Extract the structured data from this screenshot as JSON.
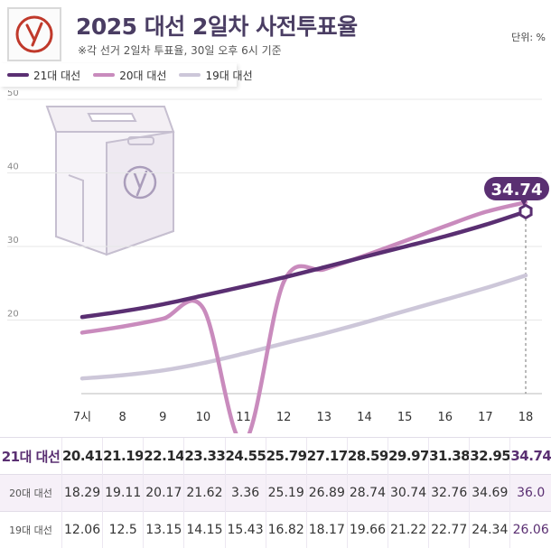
{
  "header": {
    "title": "2025 대선 2일차 사전투표율",
    "subtitle": "※각 선거 2일차 투표율, 30일 오후 6시 기준",
    "unit": "단위: %"
  },
  "colors": {
    "s21": "#5a2f72",
    "s20": "#c98bbd",
    "s19": "#cdc7d9",
    "accent": "#5a2f72",
    "grid": "#e7e7e7"
  },
  "chart_data": {
    "type": "line",
    "title": "2025 대선 2일차 사전투표율",
    "ylabel": "",
    "xlabel": "",
    "ylim": [
      10,
      50
    ],
    "yticks": [
      20,
      30,
      40,
      50
    ],
    "categories": [
      "7시",
      "8",
      "9",
      "10",
      "11",
      "12",
      "13",
      "14",
      "15",
      "16",
      "17",
      "18"
    ],
    "series": [
      {
        "name": "21대 대선",
        "values": [
          20.41,
          21.19,
          22.14,
          23.33,
          24.55,
          25.79,
          27.17,
          28.59,
          29.97,
          31.38,
          32.95,
          34.74
        ]
      },
      {
        "name": "20대 대선",
        "values": [
          18.29,
          19.11,
          20.17,
          21.62,
          3.36,
          25.19,
          26.89,
          28.74,
          30.74,
          32.76,
          34.69,
          36.0
        ]
      },
      {
        "name": "19대 대선",
        "values": [
          12.06,
          12.5,
          13.15,
          14.15,
          15.43,
          16.82,
          18.17,
          19.66,
          21.22,
          22.77,
          24.34,
          26.06
        ]
      }
    ],
    "annotation": "34.74"
  },
  "table": {
    "rows": [
      {
        "label": "21대 대선",
        "values": [
          "20.41",
          "21.19",
          "22.14",
          "23.33",
          "24.55",
          "25.79",
          "27.17",
          "28.59",
          "29.97",
          "31.38",
          "32.95",
          "34.74"
        ]
      },
      {
        "label": "20대 대선",
        "values": [
          "18.29",
          "19.11",
          "20.17",
          "21.62",
          "3.36",
          "25.19",
          "26.89",
          "28.74",
          "30.74",
          "32.76",
          "34.69",
          "36.0"
        ]
      },
      {
        "label": "19대 대선",
        "values": [
          "12.06",
          "12.5",
          "13.15",
          "14.15",
          "15.43",
          "16.82",
          "18.17",
          "19.66",
          "21.22",
          "22.77",
          "24.34",
          "26.06"
        ]
      }
    ]
  }
}
